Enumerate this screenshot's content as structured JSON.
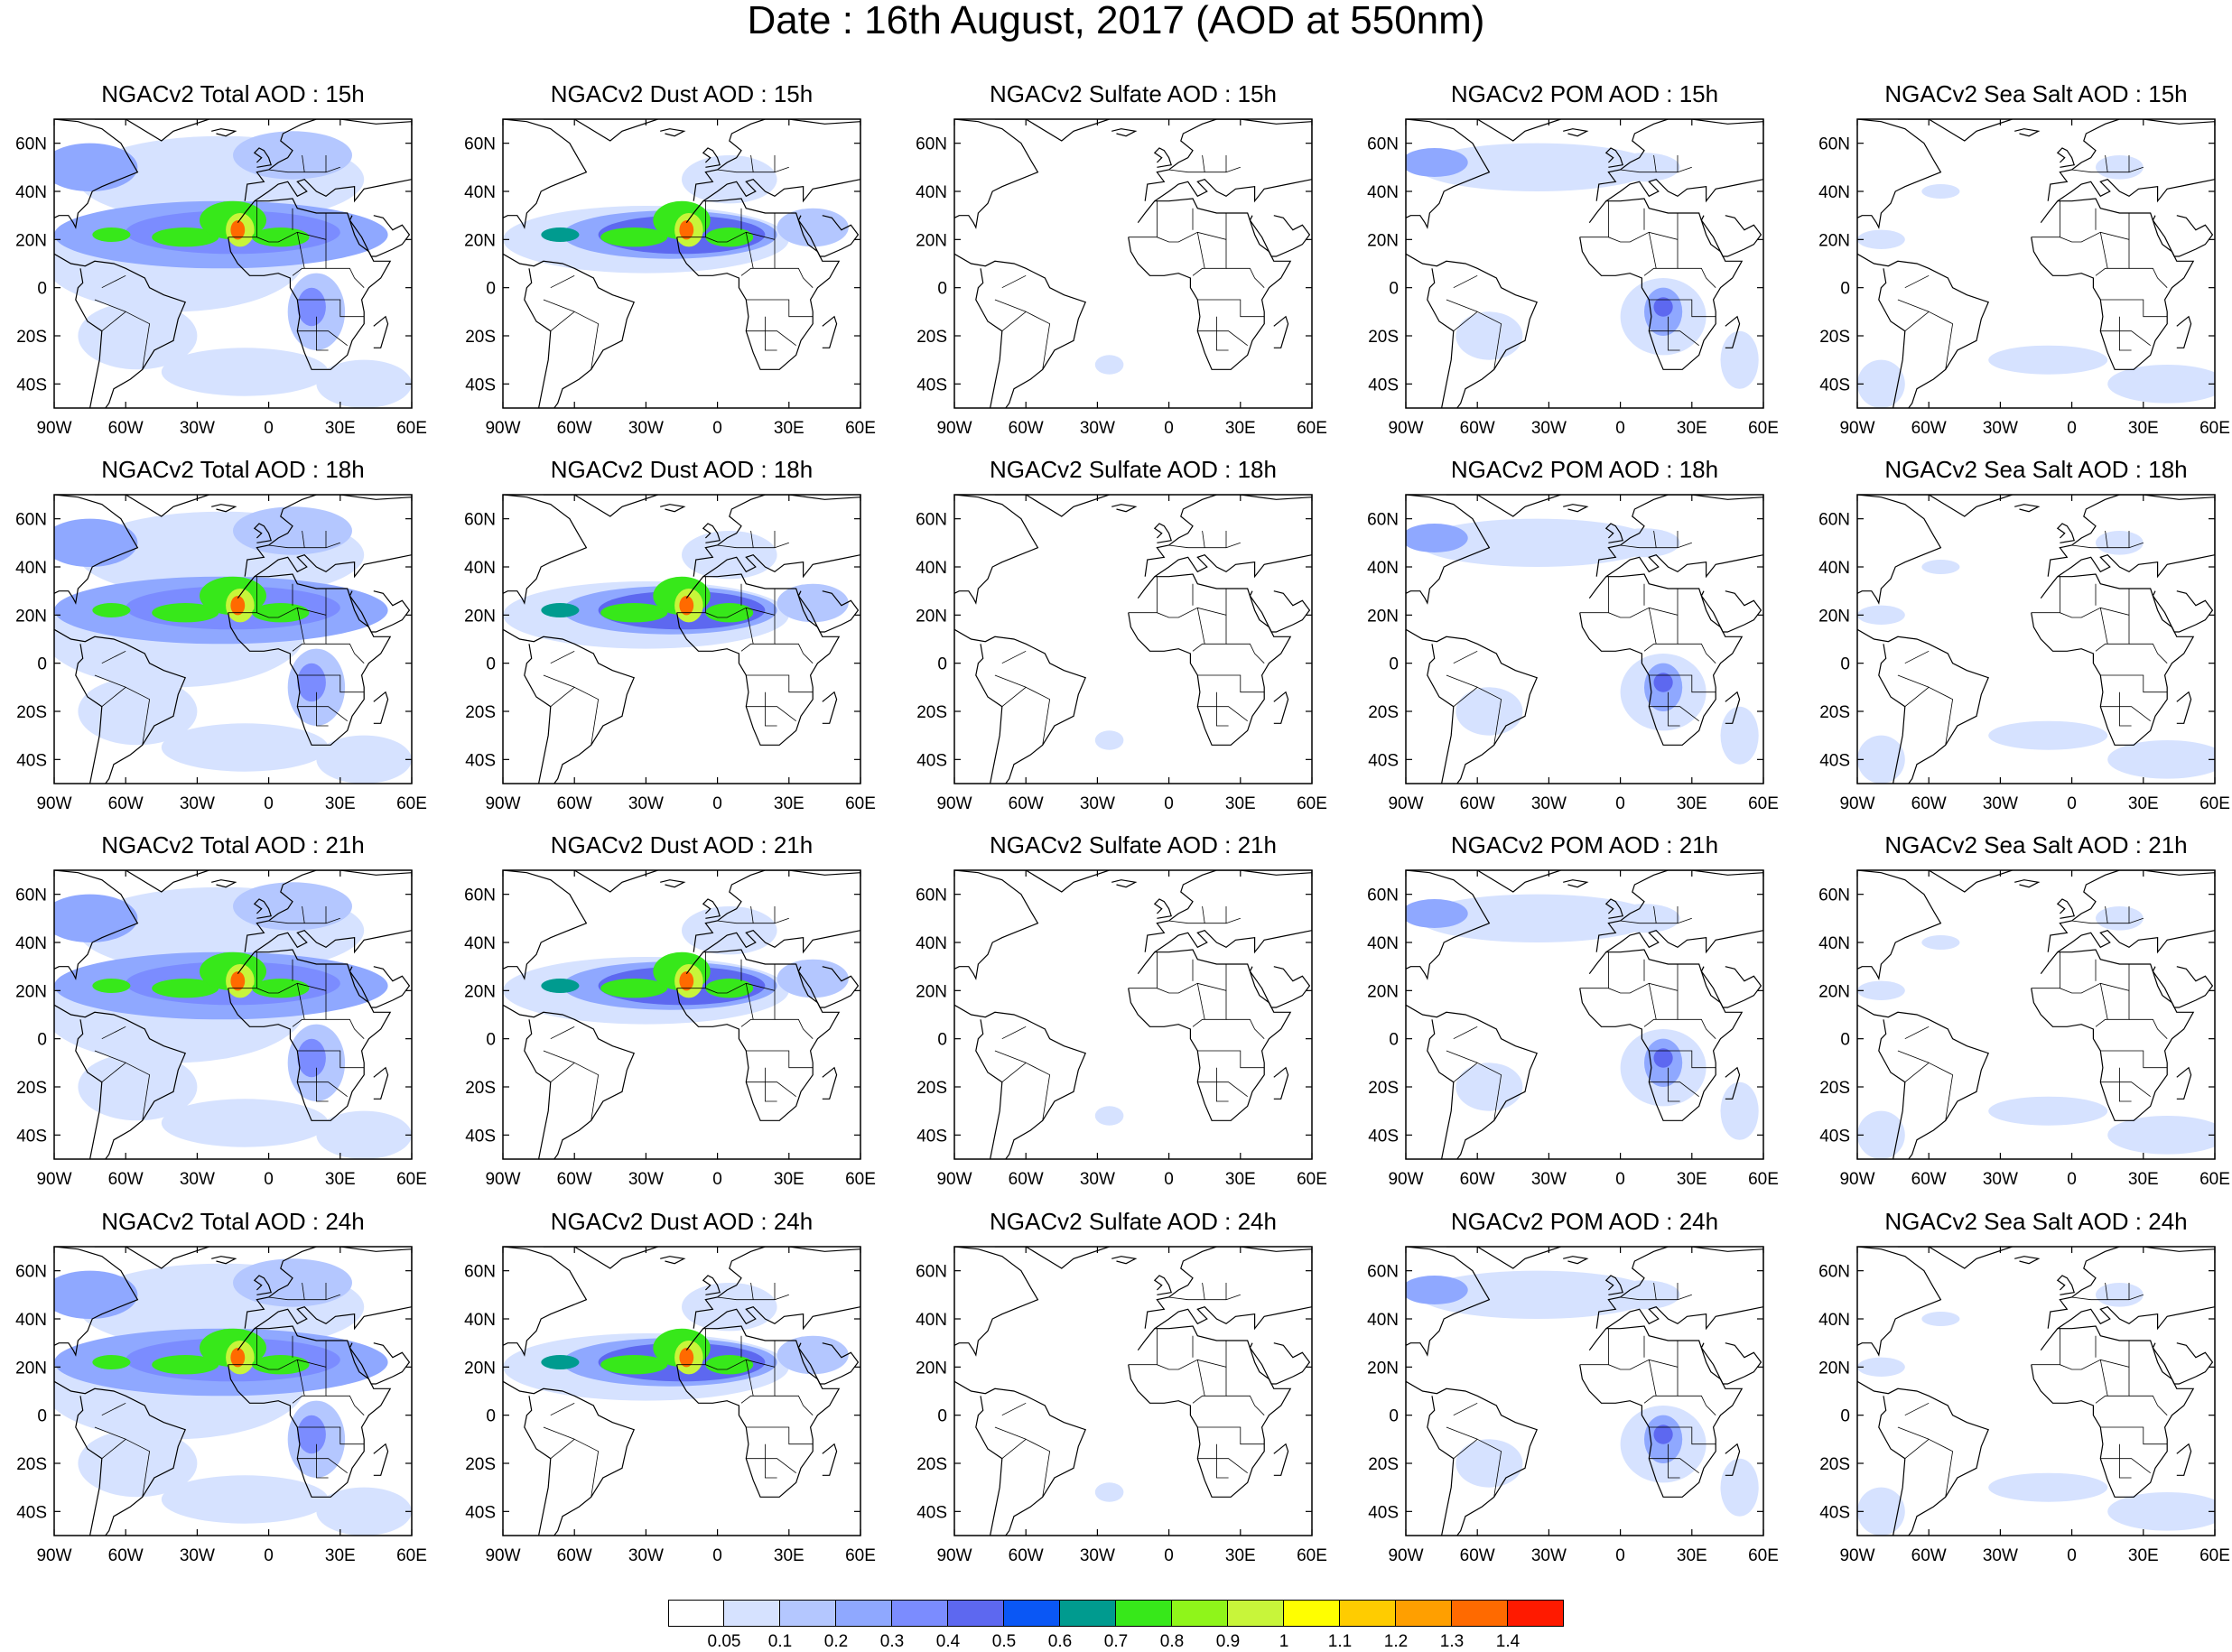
{
  "title": "Date : 16th August, 2017 (AOD at 550nm)",
  "colors": {
    "land_outline": "#000000",
    "frame": "#000000",
    "dust_palette": [
      "#ffffff",
      "#d6e2ff",
      "#b4c7ff",
      "#8fa8ff",
      "#7b8cff",
      "#5d68f0",
      "#0a57f5",
      "#009b8f",
      "#37e81a",
      "#8ff51a",
      "#c8f53a",
      "#ffff00",
      "#ffcc00",
      "#ff9f00",
      "#ff6a00",
      "#ff1a00"
    ]
  },
  "panels": [
    {
      "title": "NGACv2 Total AOD : 15h",
      "species": "total"
    },
    {
      "title": "NGACv2 Dust AOD : 15h",
      "species": "dust"
    },
    {
      "title": "NGACv2 Sulfate AOD : 15h",
      "species": "sulfate"
    },
    {
      "title": "NGACv2 POM AOD : 15h",
      "species": "pom"
    },
    {
      "title": "NGACv2 Sea Salt AOD : 15h",
      "species": "seasalt"
    },
    {
      "title": "NGACv2 Total AOD : 18h",
      "species": "total"
    },
    {
      "title": "NGACv2 Dust AOD : 18h",
      "species": "dust"
    },
    {
      "title": "NGACv2 Sulfate AOD : 18h",
      "species": "sulfate"
    },
    {
      "title": "NGACv2 POM AOD : 18h",
      "species": "pom"
    },
    {
      "title": "NGACv2 Sea Salt AOD : 18h",
      "species": "seasalt"
    },
    {
      "title": "NGACv2 Total AOD : 21h",
      "species": "total"
    },
    {
      "title": "NGACv2 Dust AOD : 21h",
      "species": "dust"
    },
    {
      "title": "NGACv2 Sulfate AOD : 21h",
      "species": "sulfate"
    },
    {
      "title": "NGACv2 POM AOD : 21h",
      "species": "pom"
    },
    {
      "title": "NGACv2 Sea Salt AOD : 21h",
      "species": "seasalt"
    },
    {
      "title": "NGACv2 Total AOD : 24h",
      "species": "total"
    },
    {
      "title": "NGACv2 Dust AOD : 24h",
      "species": "dust"
    },
    {
      "title": "NGACv2 Sulfate AOD : 24h",
      "species": "sulfate"
    },
    {
      "title": "NGACv2 POM AOD : 24h",
      "species": "pom"
    },
    {
      "title": "NGACv2 Sea Salt  AOD : 24h",
      "species": "seasalt"
    }
  ],
  "axes": {
    "lon_labels": [
      "90W",
      "60W",
      "30W",
      "0",
      "30E",
      "60E"
    ],
    "lat_labels": [
      "60N",
      "40N",
      "20N",
      "0",
      "20S",
      "40S"
    ],
    "lon_range": [
      -90,
      60
    ],
    "lat_range": [
      -50,
      70
    ]
  },
  "colorbar": {
    "labels": [
      "0.05",
      "0.1",
      "0.2",
      "0.3",
      "0.4",
      "0.5",
      "0.6",
      "0.7",
      "0.8",
      "0.9",
      "1",
      "1.1",
      "1.2",
      "1.3",
      "1.4"
    ]
  }
}
